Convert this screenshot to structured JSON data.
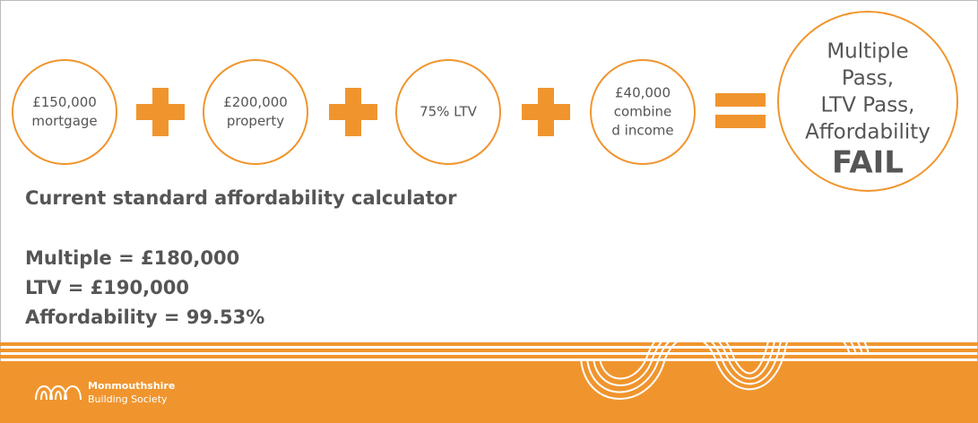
{
  "inputs": [
    {
      "lines": [
        "£150,000",
        "mortgage"
      ]
    },
    {
      "lines": [
        "£200,000",
        "property"
      ]
    },
    {
      "lines": [
        "75% LTV"
      ]
    },
    {
      "lines": [
        "£40,000",
        "combine",
        "d income"
      ]
    }
  ],
  "result": {
    "lines": [
      "Multiple",
      "Pass,",
      "LTV Pass,",
      "Affordability"
    ],
    "verdict": "FAIL"
  },
  "heading": "Current standard affordability calculator",
  "results": [
    "Multiple = £180,000",
    "LTV = £190,000",
    "Affordability = 99.53%"
  ],
  "logo": {
    "name": "Monmouthshire",
    "subtitle": "Building Society"
  }
}
